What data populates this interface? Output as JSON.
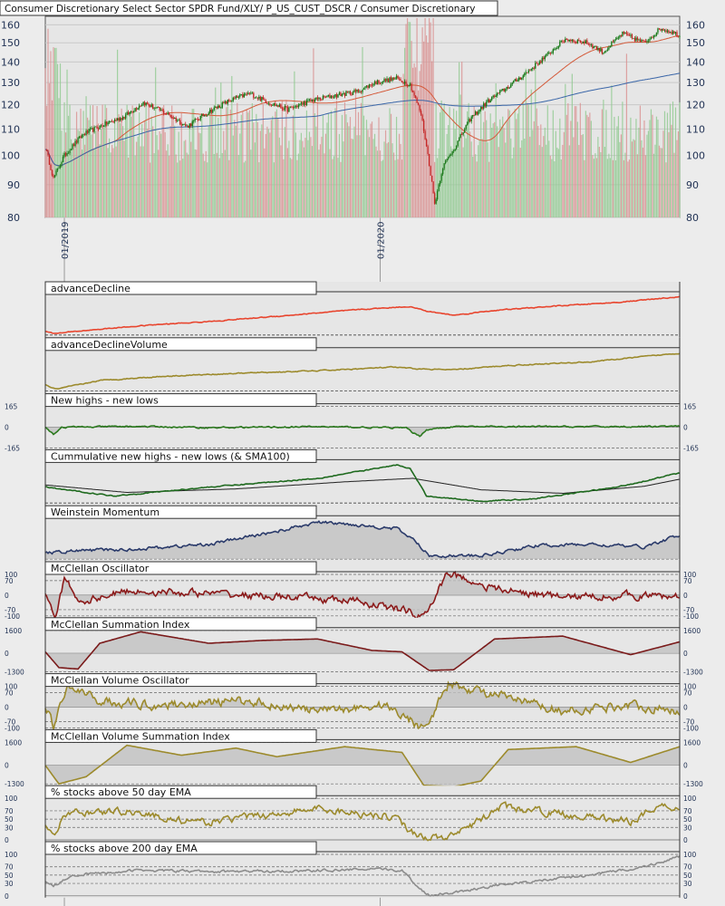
{
  "chart_data": [
    {
      "type": "candlestick",
      "title": "Consumer Discretionary Select Sector SPDR Fund/XLY/ P_US_CUST_DSCR / Consumer Discretionary",
      "y_ticks": [
        "160",
        "150",
        "140",
        "130",
        "120",
        "110",
        "100",
        "90",
        "80"
      ],
      "y_tick_values": [
        160,
        150,
        140,
        130,
        120,
        110,
        100,
        90,
        80
      ],
      "ylim": [
        80,
        165
      ],
      "x_tick_labels": [
        "01/2019",
        "01/2020"
      ],
      "scale": "log",
      "grid": true,
      "colors": {
        "up": "#1a7a1a",
        "down": "#c62828",
        "sma_fast": "#d45a3a",
        "sma_slow": "#3a66a8",
        "vol_up": "#8ec98e",
        "vol_down": "#d99090"
      },
      "price_path": [
        [
          0,
          103
        ],
        [
          6,
          92
        ],
        [
          14,
          100
        ],
        [
          28,
          108
        ],
        [
          44,
          112
        ],
        [
          58,
          115
        ],
        [
          72,
          121
        ],
        [
          90,
          116
        ],
        [
          104,
          111
        ],
        [
          120,
          117
        ],
        [
          136,
          122
        ],
        [
          150,
          125
        ],
        [
          164,
          121
        ],
        [
          178,
          118
        ],
        [
          196,
          122
        ],
        [
          212,
          124
        ],
        [
          230,
          126
        ],
        [
          242,
          130
        ],
        [
          258,
          132
        ],
        [
          268,
          129
        ],
        [
          276,
          116
        ],
        [
          282,
          97
        ],
        [
          286,
          84
        ],
        [
          292,
          96
        ],
        [
          302,
          104
        ],
        [
          312,
          114
        ],
        [
          326,
          122
        ],
        [
          340,
          128
        ],
        [
          354,
          135
        ],
        [
          368,
          143
        ],
        [
          382,
          152
        ],
        [
          398,
          150
        ],
        [
          410,
          145
        ],
        [
          424,
          155
        ],
        [
          440,
          150
        ],
        [
          452,
          158
        ],
        [
          460,
          156
        ],
        [
          466,
          154
        ]
      ]
    },
    {
      "type": "line",
      "panels": [
        {
          "title": "advanceDecline",
          "ticks": [],
          "color": "#e8452e",
          "series_path": [
            [
              0,
              10
            ],
            [
              8,
              4
            ],
            [
              30,
              12
            ],
            [
              80,
              26
            ],
            [
              120,
              34
            ],
            [
              180,
              50
            ],
            [
              230,
              64
            ],
            [
              268,
              72
            ],
            [
              280,
              60
            ],
            [
              300,
              50
            ],
            [
              330,
              62
            ],
            [
              380,
              74
            ],
            [
              420,
              82
            ],
            [
              466,
              96
            ]
          ]
        },
        {
          "title": "advanceDeclineVolume",
          "ticks": [],
          "color": "#9c8a2c",
          "series_path": [
            [
              0,
              20
            ],
            [
              8,
              10
            ],
            [
              40,
              30
            ],
            [
              90,
              40
            ],
            [
              140,
              46
            ],
            [
              200,
              52
            ],
            [
              255,
              60
            ],
            [
              275,
              56
            ],
            [
              300,
              54
            ],
            [
              340,
              64
            ],
            [
              400,
              72
            ],
            [
              466,
              92
            ]
          ]
        },
        {
          "title": "New highs - new lows",
          "ticks": [
            "165",
            "0",
            "-165"
          ],
          "tick_values": [
            165,
            0,
            -165
          ],
          "color": "#2c7a1f",
          "series_path": [
            [
              0,
              0
            ],
            [
              6,
              -55
            ],
            [
              12,
              0
            ],
            [
              70,
              6
            ],
            [
              120,
              -4
            ],
            [
              200,
              4
            ],
            [
              265,
              -6
            ],
            [
              270,
              -45
            ],
            [
              275,
              -70
            ],
            [
              280,
              -20
            ],
            [
              300,
              4
            ],
            [
              400,
              4
            ],
            [
              466,
              6
            ]
          ],
          "noise": 10
        },
        {
          "title": "Cummulative new highs - new lows (& SMA100)",
          "ticks": [],
          "color": "#1f6a1f",
          "sma_color": "#222222",
          "series_path": [
            [
              0,
              40
            ],
            [
              50,
              20
            ],
            [
              120,
              40
            ],
            [
              200,
              60
            ],
            [
              258,
              90
            ],
            [
              268,
              82
            ],
            [
              280,
              20
            ],
            [
              320,
              8
            ],
            [
              360,
              14
            ],
            [
              420,
              40
            ],
            [
              466,
              72
            ]
          ],
          "sma_path": [
            [
              0,
              45
            ],
            [
              60,
              28
            ],
            [
              140,
              36
            ],
            [
              220,
              52
            ],
            [
              270,
              60
            ],
            [
              320,
              34
            ],
            [
              380,
              26
            ],
            [
              440,
              42
            ],
            [
              466,
              58
            ]
          ]
        },
        {
          "title": "Weinstein Momentum",
          "ticks": [],
          "color": "#2a3a6a",
          "series_path": [
            [
              0,
              48
            ],
            [
              20,
              52
            ],
            [
              60,
              54
            ],
            [
              120,
              62
            ],
            [
              170,
              82
            ],
            [
              200,
              96
            ],
            [
              230,
              92
            ],
            [
              258,
              86
            ],
            [
              270,
              70
            ],
            [
              282,
              45
            ],
            [
              320,
              44
            ],
            [
              360,
              60
            ],
            [
              400,
              62
            ],
            [
              440,
              58
            ],
            [
              466,
              76
            ]
          ],
          "noise": 4
        },
        {
          "title": "McClellan Oscillator",
          "ticks": [
            "100",
            "70",
            "0",
            "-70",
            "-100"
          ],
          "tick_values": [
            100,
            70,
            0,
            -70,
            -100
          ],
          "color": "#8b1a1a",
          "series_path": [
            [
              0,
              0
            ],
            [
              4,
              -70
            ],
            [
              8,
              -100
            ],
            [
              14,
              80
            ],
            [
              26,
              -30
            ],
            [
              60,
              20
            ],
            [
              110,
              10
            ],
            [
              180,
              -10
            ],
            [
              230,
              -30
            ],
            [
              268,
              -80
            ],
            [
              274,
              -100
            ],
            [
              282,
              -70
            ],
            [
              295,
              110
            ],
            [
              330,
              30
            ],
            [
              380,
              -10
            ],
            [
              430,
              0
            ],
            [
              466,
              -10
            ]
          ],
          "noise": 30
        },
        {
          "title": "McClellan Summation Index",
          "ticks": [
            "1600",
            "0",
            "-1300"
          ],
          "tick_values": [
            1600,
            0,
            -1300
          ],
          "color": "#7a1a1a",
          "series_path": [
            [
              0,
              100
            ],
            [
              10,
              -1000
            ],
            [
              24,
              -1100
            ],
            [
              40,
              700
            ],
            [
              70,
              1500
            ],
            [
              120,
              700
            ],
            [
              160,
              900
            ],
            [
              200,
              1000
            ],
            [
              240,
              200
            ],
            [
              262,
              100
            ],
            [
              282,
              -1200
            ],
            [
              300,
              -1150
            ],
            [
              330,
              1000
            ],
            [
              380,
              1200
            ],
            [
              430,
              -100
            ],
            [
              466,
              800
            ]
          ]
        },
        {
          "title": "McClellan Volume Oscillator",
          "ticks": [
            "100",
            "70",
            "0",
            "-70",
            "-100"
          ],
          "tick_values": [
            100,
            70,
            0,
            -70,
            -100
          ],
          "color": "#9c8a2c",
          "series_path": [
            [
              0,
              0
            ],
            [
              6,
              -90
            ],
            [
              16,
              100
            ],
            [
              40,
              30
            ],
            [
              80,
              10
            ],
            [
              150,
              30
            ],
            [
              200,
              -20
            ],
            [
              250,
              10
            ],
            [
              268,
              -60
            ],
            [
              274,
              -95
            ],
            [
              284,
              -40
            ],
            [
              296,
              110
            ],
            [
              330,
              60
            ],
            [
              380,
              -20
            ],
            [
              430,
              10
            ],
            [
              466,
              -20
            ]
          ],
          "noise": 35
        },
        {
          "title": "McClellan Volume Summation Index",
          "ticks": [
            "1600",
            "0",
            "-1300"
          ],
          "tick_values": [
            1600,
            0,
            -1300
          ],
          "color": "#9c8a2c",
          "series_path": [
            [
              0,
              0
            ],
            [
              10,
              -1300
            ],
            [
              30,
              -800
            ],
            [
              60,
              1400
            ],
            [
              100,
              700
            ],
            [
              140,
              1200
            ],
            [
              170,
              600
            ],
            [
              220,
              1300
            ],
            [
              262,
              900
            ],
            [
              278,
              -1400
            ],
            [
              300,
              -1500
            ],
            [
              320,
              -1100
            ],
            [
              340,
              1100
            ],
            [
              390,
              1300
            ],
            [
              430,
              200
            ],
            [
              466,
              1300
            ]
          ]
        },
        {
          "title": "% stocks above 50 day EMA",
          "ticks": [
            "100",
            "70",
            "50",
            "30",
            "0"
          ],
          "tick_values": [
            100,
            70,
            50,
            30,
            0
          ],
          "color": "#9c8a2c",
          "series_path": [
            [
              0,
              30
            ],
            [
              6,
              10
            ],
            [
              16,
              65
            ],
            [
              60,
              70
            ],
            [
              110,
              40
            ],
            [
              150,
              55
            ],
            [
              200,
              75
            ],
            [
              258,
              55
            ],
            [
              268,
              20
            ],
            [
              282,
              5
            ],
            [
              300,
              8
            ],
            [
              316,
              40
            ],
            [
              335,
              80
            ],
            [
              360,
              70
            ],
            [
              400,
              55
            ],
            [
              430,
              45
            ],
            [
              450,
              82
            ],
            [
              466,
              78
            ]
          ],
          "noise": 14
        },
        {
          "title": "% stocks above 200 day EMA",
          "ticks": [
            "100",
            "70",
            "50",
            "30",
            "0"
          ],
          "tick_values": [
            100,
            70,
            50,
            30,
            0
          ],
          "color": "#8c8c8c",
          "series_path": [
            [
              0,
              35
            ],
            [
              6,
              25
            ],
            [
              20,
              50
            ],
            [
              70,
              62
            ],
            [
              120,
              58
            ],
            [
              180,
              60
            ],
            [
              240,
              64
            ],
            [
              262,
              62
            ],
            [
              274,
              20
            ],
            [
              282,
              2
            ],
            [
              300,
              8
            ],
            [
              330,
              25
            ],
            [
              360,
              35
            ],
            [
              400,
              50
            ],
            [
              440,
              70
            ],
            [
              466,
              95
            ]
          ],
          "noise": 5
        }
      ]
    }
  ]
}
